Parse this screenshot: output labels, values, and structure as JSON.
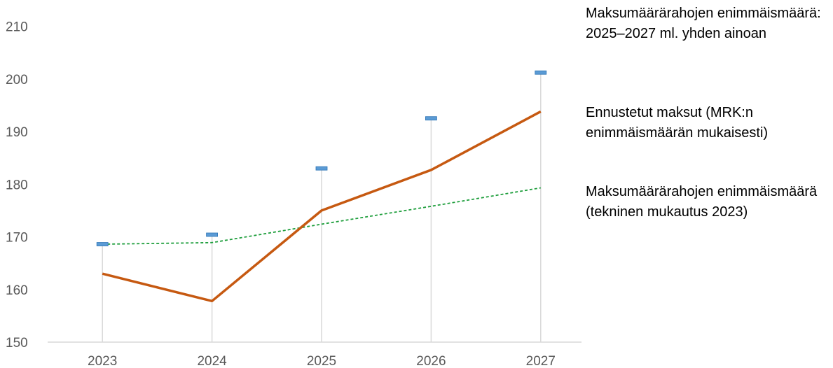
{
  "chart_data": {
    "type": "line",
    "categories": [
      "2023",
      "2024",
      "2025",
      "2026",
      "2027"
    ],
    "ylim": [
      150,
      210
    ],
    "yticks": [
      150,
      160,
      170,
      180,
      190,
      200,
      210
    ],
    "grid": false,
    "legend_placement": "right",
    "series": [
      {
        "name": "Maksumäärärahojen enimmäismäärä: 2025–2027 ml. yhden ainoan",
        "style": "high-low markers",
        "color": "#5b9bd5",
        "values": [
          168.6,
          170.4,
          183.0,
          192.5,
          201.2
        ]
      },
      {
        "name": "Ennustetut maksut (MRK:n enimmäismäärän mukaisesti)",
        "style": "solid line",
        "color": "#c65911",
        "values": [
          163.0,
          157.8,
          175.0,
          182.7,
          193.8
        ]
      },
      {
        "name": "Maksumäärärahojen enimmäismäärä (tekninen mukautus 2023)",
        "style": "dashed line",
        "color": "#1e9e3c",
        "values": [
          168.6,
          168.9,
          172.4,
          175.8,
          179.3
        ]
      }
    ]
  }
}
